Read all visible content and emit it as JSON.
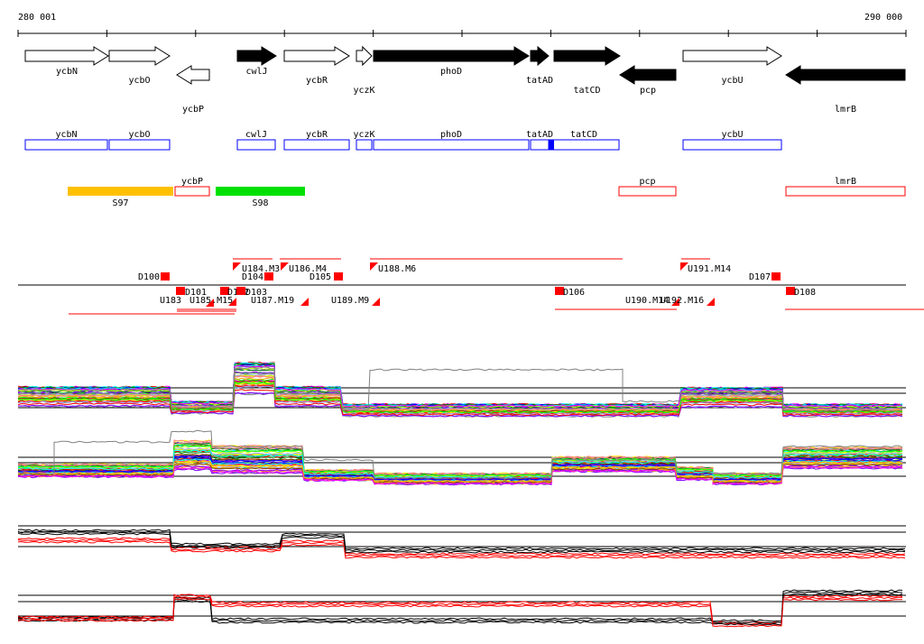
{
  "ruler": {
    "start_label": "280 001",
    "end_label": "290 000"
  },
  "genes": [
    {
      "name": "ycbN",
      "strand": "+",
      "essential": false
    },
    {
      "name": "ycbO",
      "strand": "+",
      "essential": false
    },
    {
      "name": "ycbP",
      "strand": "-",
      "essential": false
    },
    {
      "name": "cwlJ",
      "strand": "+",
      "essential": true
    },
    {
      "name": "ycbR",
      "strand": "+",
      "essential": false
    },
    {
      "name": "yczK",
      "strand": "+",
      "essential": false
    },
    {
      "name": "phoD",
      "strand": "+",
      "essential": true
    },
    {
      "name": "tatAD",
      "strand": "+",
      "essential": true
    },
    {
      "name": "tatCD",
      "strand": "+",
      "essential": true
    },
    {
      "name": "pcp",
      "strand": "-",
      "essential": true
    },
    {
      "name": "ycbU",
      "strand": "+",
      "essential": false
    },
    {
      "name": "lmrB",
      "strand": "-",
      "essential": true
    }
  ],
  "forward_boxes": [
    "ycbN",
    "ycbO",
    "cwlJ",
    "ycbR",
    "yczK",
    "phoD",
    "tatAD",
    "tatCD",
    "ycbU"
  ],
  "reverse_boxes": [
    "ycbP",
    "pcp",
    "lmrB"
  ],
  "segments": [
    {
      "name": "S97",
      "color": "#ffc000"
    },
    {
      "name": "S98",
      "color": "#00e000"
    }
  ],
  "features": [
    "D100",
    "D101",
    "U183",
    "U185.M15",
    "D102",
    "D103",
    "U184.M3",
    "D104",
    "U186.M4",
    "U187.M19",
    "D105",
    "U188.M6",
    "U189.M9",
    "D106",
    "U190.M14",
    "U191.M14",
    "U192.M16",
    "D107",
    "D108"
  ],
  "colors": {
    "forward_box": "#0000ff",
    "reverse_box": "#ff0000",
    "feature": "#ff0000",
    "gene_fill": "#000000"
  }
}
